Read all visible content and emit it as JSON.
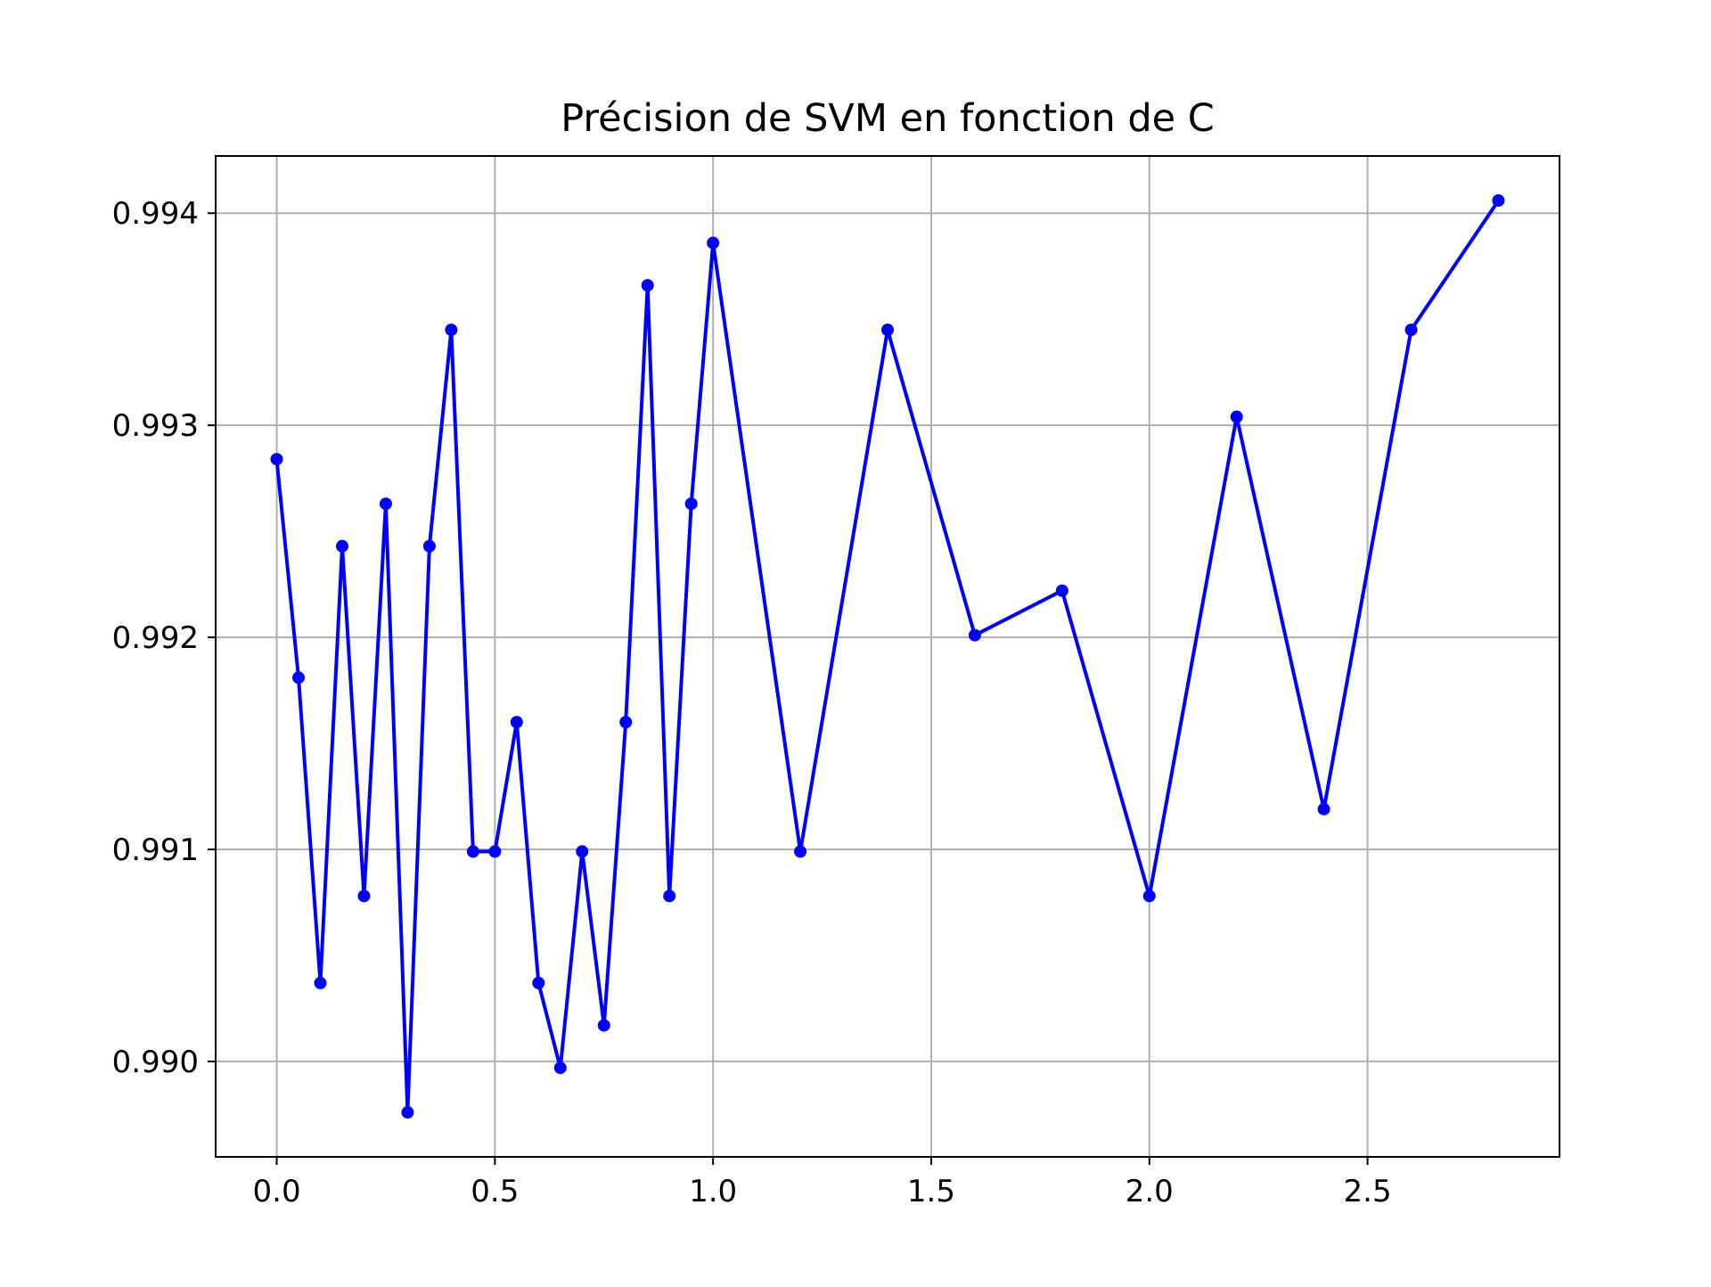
{
  "chart_data": {
    "type": "line",
    "title": "Précision de SVM en fonction de C",
    "xlabel": "",
    "ylabel": "",
    "xlim": [
      -0.14,
      2.94
    ],
    "ylim": [
      0.98955,
      0.99427
    ],
    "xticks": [
      0.0,
      0.5,
      1.0,
      1.5,
      2.0,
      2.5
    ],
    "xtick_labels": [
      "0.0",
      "0.5",
      "1.0",
      "1.5",
      "2.0",
      "2.5"
    ],
    "yticks": [
      0.99,
      0.991,
      0.992,
      0.993,
      0.994
    ],
    "ytick_labels": [
      "0.990",
      "0.991",
      "0.992",
      "0.993",
      "0.994"
    ],
    "grid": true,
    "series": [
      {
        "marker": "circle",
        "color": "#0000ff",
        "x": [
          0.0,
          0.05,
          0.1,
          0.15,
          0.2,
          0.25,
          0.3,
          0.35,
          0.4,
          0.45,
          0.5,
          0.55,
          0.6,
          0.65,
          0.7,
          0.75,
          0.8,
          0.85,
          0.9,
          0.95,
          1.0,
          1.2,
          1.4,
          1.6,
          1.8,
          2.0,
          2.2,
          2.4,
          2.6,
          2.8
        ],
        "y": [
          0.99284,
          0.99181,
          0.99037,
          0.99243,
          0.99078,
          0.99263,
          0.98976,
          0.99243,
          0.99345,
          0.99099,
          0.99099,
          0.9916,
          0.99037,
          0.98997,
          0.99099,
          0.99017,
          0.9916,
          0.99366,
          0.99078,
          0.99263,
          0.99386,
          0.99099,
          0.99345,
          0.99201,
          0.99222,
          0.99078,
          0.99304,
          0.99119,
          0.99345,
          0.99406
        ]
      }
    ]
  },
  "colors": {
    "line": "#0000ff",
    "grid": "#b0b0b0",
    "axes": "#000000"
  }
}
